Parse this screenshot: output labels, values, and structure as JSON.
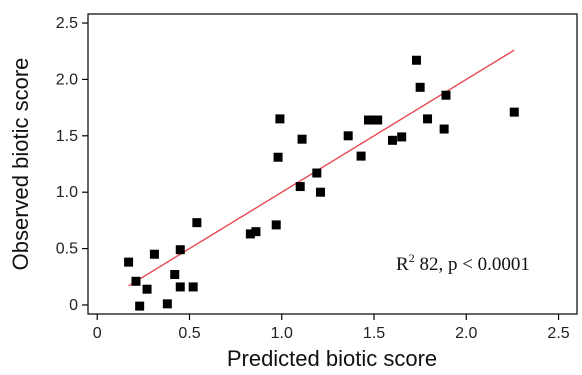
{
  "chart_data": {
    "type": "scatter",
    "title": "",
    "xlabel": "Predicted biotic score",
    "ylabel": "Observed biotic score",
    "xlim": [
      -0.05,
      2.6
    ],
    "ylim": [
      -0.08,
      2.58
    ],
    "xticks": [
      0,
      0.5,
      1.0,
      1.5,
      2.0,
      2.5
    ],
    "xtick_labels": [
      "0",
      "0.5",
      "1.0",
      "1.5",
      "2.0",
      "2.5"
    ],
    "yticks": [
      0,
      0.5,
      1.0,
      1.5,
      2.0,
      2.5
    ],
    "ytick_labels": [
      "0",
      "0.5",
      "1.0",
      "1.5",
      "2.0",
      "2.5"
    ],
    "grid": false,
    "legend": "none",
    "marker_color": "#000000",
    "fit_line_color": "#e8484f",
    "points": [
      {
        "x": 0.17,
        "y": 0.38
      },
      {
        "x": 0.21,
        "y": 0.21
      },
      {
        "x": 0.23,
        "y": -0.01
      },
      {
        "x": 0.27,
        "y": 0.14
      },
      {
        "x": 0.31,
        "y": 0.45
      },
      {
        "x": 0.38,
        "y": 0.01
      },
      {
        "x": 0.42,
        "y": 0.27
      },
      {
        "x": 0.45,
        "y": 0.49
      },
      {
        "x": 0.45,
        "y": 0.16
      },
      {
        "x": 0.52,
        "y": 0.16
      },
      {
        "x": 0.54,
        "y": 0.73
      },
      {
        "x": 0.83,
        "y": 0.63
      },
      {
        "x": 0.86,
        "y": 0.65
      },
      {
        "x": 0.97,
        "y": 0.71
      },
      {
        "x": 0.98,
        "y": 1.31
      },
      {
        "x": 0.99,
        "y": 1.65
      },
      {
        "x": 1.1,
        "y": 1.05
      },
      {
        "x": 1.11,
        "y": 1.47
      },
      {
        "x": 1.19,
        "y": 1.17
      },
      {
        "x": 1.21,
        "y": 1.0
      },
      {
        "x": 1.36,
        "y": 1.5
      },
      {
        "x": 1.43,
        "y": 1.32
      },
      {
        "x": 1.47,
        "y": 1.64
      },
      {
        "x": 1.49,
        "y": 1.64
      },
      {
        "x": 1.52,
        "y": 1.64
      },
      {
        "x": 1.6,
        "y": 1.46
      },
      {
        "x": 1.65,
        "y": 1.49
      },
      {
        "x": 1.73,
        "y": 2.17
      },
      {
        "x": 1.75,
        "y": 1.93
      },
      {
        "x": 1.79,
        "y": 1.65
      },
      {
        "x": 1.88,
        "y": 1.56
      },
      {
        "x": 1.89,
        "y": 1.86
      },
      {
        "x": 2.26,
        "y": 1.71
      }
    ],
    "fit_line": {
      "x1": 0.17,
      "y1": 0.17,
      "x2": 2.26,
      "y2": 2.26
    },
    "annotation": {
      "prefix": "R",
      "superscript": "2",
      "suffix": " 82, p < 0.0001"
    }
  }
}
